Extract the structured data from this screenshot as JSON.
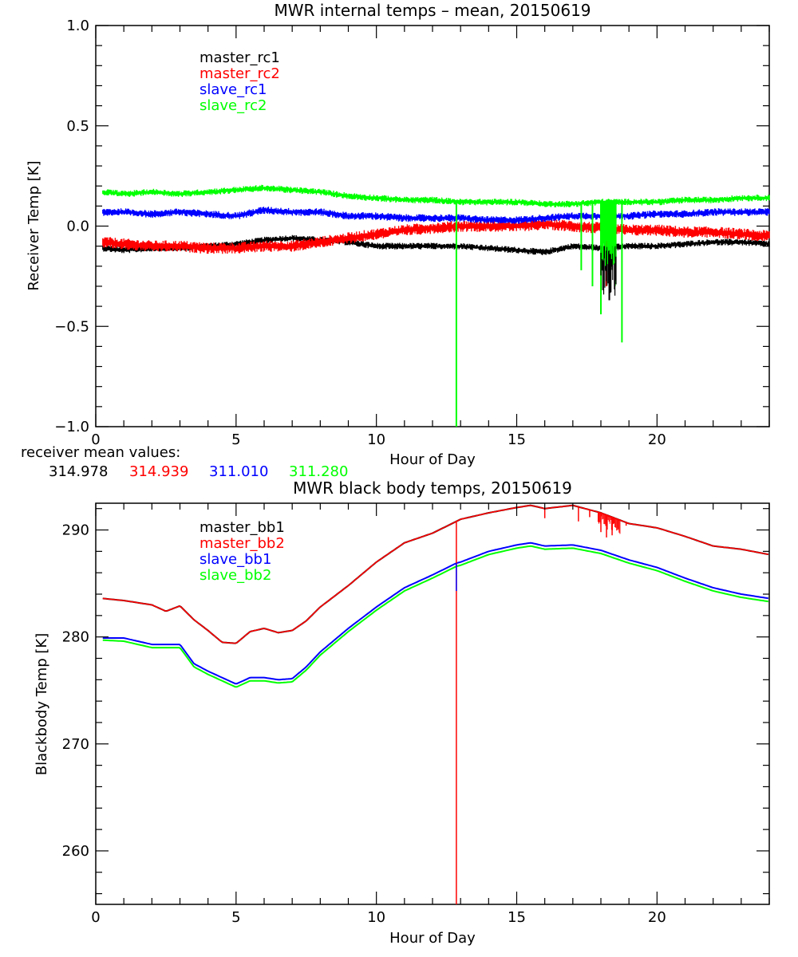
{
  "chart_data": [
    {
      "type": "line",
      "title": "MWR internal temps – mean, 20150619",
      "xlabel": "Hour of Day",
      "ylabel": "Receiver Temp [K]",
      "xlim": [
        0,
        24
      ],
      "ylim": [
        -1.0,
        1.0
      ],
      "x_ticks": [
        0,
        5,
        10,
        15,
        20
      ],
      "x_tick_labels": [
        "0",
        "5",
        "10",
        "15",
        "20"
      ],
      "y_ticks": [
        1.0,
        0.5,
        0.0,
        -0.5,
        -1.0
      ],
      "y_tick_labels": [
        "1.0",
        "0.5",
        "0.0",
        "−0.5",
        "−1.0"
      ],
      "grid": false,
      "legend_placement": "top-left",
      "x": [
        0.25,
        1,
        2,
        3,
        4,
        5,
        6,
        7,
        8,
        9,
        10,
        11,
        12,
        13,
        14,
        15,
        16,
        17,
        18,
        19,
        20,
        21,
        22,
        23,
        24
      ],
      "series": [
        {
          "name": "master_rc1",
          "color": "#000000",
          "values": [
            -0.11,
            -0.12,
            -0.11,
            -0.11,
            -0.1,
            -0.09,
            -0.07,
            -0.06,
            -0.07,
            -0.08,
            -0.1,
            -0.1,
            -0.1,
            -0.1,
            -0.11,
            -0.12,
            -0.13,
            -0.1,
            -0.11,
            -0.1,
            -0.1,
            -0.09,
            -0.08,
            -0.08,
            -0.09
          ]
        },
        {
          "name": "master_rc2",
          "color": "#ff0000",
          "values": [
            -0.08,
            -0.09,
            -0.1,
            -0.1,
            -0.11,
            -0.11,
            -0.1,
            -0.1,
            -0.08,
            -0.06,
            -0.04,
            -0.02,
            -0.01,
            0.0,
            0.0,
            0.0,
            0.01,
            0.0,
            -0.01,
            -0.02,
            -0.02,
            -0.03,
            -0.03,
            -0.04,
            -0.05
          ]
        },
        {
          "name": "slave_rc1",
          "color": "#0000ff",
          "values": [
            0.07,
            0.07,
            0.06,
            0.07,
            0.06,
            0.05,
            0.08,
            0.07,
            0.07,
            0.05,
            0.05,
            0.04,
            0.04,
            0.04,
            0.03,
            0.03,
            0.04,
            0.05,
            0.05,
            0.05,
            0.06,
            0.06,
            0.07,
            0.07,
            0.07
          ]
        },
        {
          "name": "slave_rc2",
          "color": "#00ff00",
          "values": [
            0.17,
            0.16,
            0.17,
            0.16,
            0.17,
            0.18,
            0.19,
            0.18,
            0.17,
            0.15,
            0.14,
            0.13,
            0.13,
            0.12,
            0.12,
            0.12,
            0.11,
            0.11,
            0.12,
            0.12,
            0.12,
            0.13,
            0.13,
            0.14,
            0.14
          ]
        }
      ],
      "spikes": [
        {
          "series": "slave_rc2",
          "x": 12.85,
          "min": -1.0
        },
        {
          "series": "slave_rc2",
          "x": 17.3,
          "min": -0.22
        },
        {
          "series": "slave_rc2",
          "x": 17.7,
          "min": -0.3
        },
        {
          "series": "slave_rc2",
          "x": 18.0,
          "min": -0.44
        },
        {
          "series": "slave_rc2",
          "x": 18.5,
          "min": -0.3
        },
        {
          "series": "slave_rc2",
          "x": 18.75,
          "min": -0.58
        },
        {
          "series": "master_rc1",
          "x": 18.3,
          "min": -0.37
        },
        {
          "series": "master_rc2",
          "x": 18.2,
          "min": -0.3
        }
      ],
      "annotations": {
        "mean_label": "receiver mean values:",
        "mean_values": [
          {
            "value": "314.978",
            "color": "#000000"
          },
          {
            "value": "314.939",
            "color": "#ff0000"
          },
          {
            "value": "311.010",
            "color": "#0000ff"
          },
          {
            "value": "311.280",
            "color": "#00ff00"
          }
        ]
      }
    },
    {
      "type": "line",
      "title": "MWR black body temps, 20150619",
      "xlabel": "Hour of Day",
      "ylabel": "Blackbody Temp [K]",
      "xlim": [
        0,
        24
      ],
      "ylim": [
        255,
        292.5
      ],
      "x_ticks": [
        0,
        5,
        10,
        15,
        20
      ],
      "x_tick_labels": [
        "0",
        "5",
        "10",
        "15",
        "20"
      ],
      "y_ticks": [
        290,
        280,
        270,
        260
      ],
      "y_tick_labels": [
        "290",
        "280",
        "270",
        "260"
      ],
      "grid": false,
      "legend_placement": "top-left",
      "x": [
        0.25,
        1,
        2,
        2.5,
        3,
        3.5,
        4,
        4.5,
        5,
        5.5,
        6,
        6.5,
        7,
        7.5,
        8,
        9,
        10,
        11,
        12,
        12.85,
        13,
        14,
        15,
        15.5,
        16,
        17,
        18,
        19,
        20,
        21,
        22,
        23,
        24
      ],
      "series": [
        {
          "name": "master_bb1",
          "color": "#000000",
          "values": [
            283.6,
            283.4,
            283.0,
            282.4,
            282.9,
            281.6,
            280.6,
            279.5,
            279.4,
            280.5,
            280.8,
            280.4,
            280.6,
            281.5,
            282.8,
            284.8,
            287.0,
            288.8,
            289.7,
            290.8,
            291.0,
            291.6,
            292.1,
            292.3,
            292.0,
            292.3,
            291.6,
            290.6,
            290.2,
            289.4,
            288.5,
            288.2,
            287.7
          ]
        },
        {
          "name": "master_bb2",
          "color": "#ff0000",
          "values": [
            283.6,
            283.4,
            283.0,
            282.4,
            282.9,
            281.6,
            280.6,
            279.5,
            279.4,
            280.5,
            280.8,
            280.4,
            280.6,
            281.5,
            282.8,
            284.8,
            287.0,
            288.8,
            289.7,
            290.8,
            291.0,
            291.6,
            292.1,
            292.3,
            292.0,
            292.3,
            291.6,
            290.6,
            290.2,
            289.4,
            288.5,
            288.2,
            287.7
          ]
        },
        {
          "name": "slave_bb1",
          "color": "#0000ff",
          "values": [
            279.9,
            279.9,
            279.3,
            279.3,
            279.3,
            277.5,
            276.8,
            276.2,
            275.6,
            276.2,
            276.2,
            276.0,
            276.1,
            277.2,
            278.6,
            280.8,
            282.8,
            284.6,
            285.8,
            286.9,
            287.0,
            288.0,
            288.6,
            288.8,
            288.5,
            288.6,
            288.1,
            287.2,
            286.5,
            285.5,
            284.6,
            284.0,
            283.6
          ]
        },
        {
          "name": "slave_bb2",
          "color": "#00ff00",
          "values": [
            279.7,
            279.6,
            279.0,
            279.0,
            279.0,
            277.2,
            276.5,
            275.9,
            275.3,
            275.9,
            275.9,
            275.7,
            275.8,
            276.9,
            278.3,
            280.5,
            282.5,
            284.3,
            285.5,
            286.6,
            286.7,
            287.7,
            288.3,
            288.5,
            288.2,
            288.3,
            287.8,
            286.9,
            286.2,
            285.2,
            284.3,
            283.7,
            283.3
          ]
        }
      ],
      "spikes": [
        {
          "series": "master_bb2",
          "x": 12.85,
          "min": 255.0
        },
        {
          "series": "slave_bb1",
          "x": 12.85,
          "min": 284.3
        },
        {
          "series": "master_bb2",
          "x": 16.0,
          "min": 291.1
        },
        {
          "series": "master_bb2",
          "x": 17.2,
          "min": 290.8
        },
        {
          "series": "master_bb2",
          "x": 17.6,
          "min": 291.2
        },
        {
          "series": "master_bb2",
          "x": 18.0,
          "min": 289.8
        },
        {
          "series": "master_bb2",
          "x": 18.2,
          "min": 289.3
        },
        {
          "series": "master_bb2",
          "x": 18.4,
          "min": 289.5
        },
        {
          "series": "master_bb2",
          "x": 18.6,
          "min": 290.0
        },
        {
          "series": "master_bb2",
          "x": 18.9,
          "min": 290.4
        }
      ]
    }
  ]
}
